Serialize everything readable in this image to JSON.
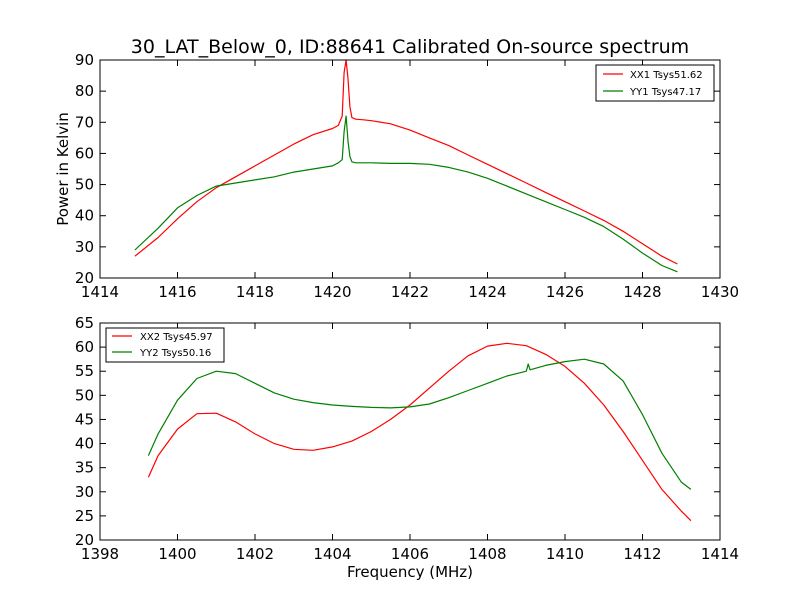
{
  "chart_data": [
    {
      "type": "line",
      "title": "30_LAT_Below_0, ID:88641 Calibrated On-source spectrum",
      "xlabel": "",
      "ylabel": "Power in Kelvin",
      "xlim": [
        1414,
        1430
      ],
      "ylim": [
        20,
        90
      ],
      "xticks": [
        1414,
        1416,
        1418,
        1420,
        1422,
        1424,
        1426,
        1428,
        1430
      ],
      "yticks": [
        20,
        30,
        40,
        50,
        60,
        70,
        80,
        90
      ],
      "grid": false,
      "legend_position": "top-right",
      "series": [
        {
          "name": "XX1 Tsys51.62",
          "color": "#ff0000",
          "x": [
            1414.9,
            1415.5,
            1416,
            1416.5,
            1417,
            1417.5,
            1418,
            1418.5,
            1419,
            1419.5,
            1420,
            1420.15,
            1420.25,
            1420.3,
            1420.35,
            1420.4,
            1420.45,
            1420.5,
            1420.6,
            1420.8,
            1421,
            1421.5,
            1422,
            1422.5,
            1423,
            1423.5,
            1424,
            1424.5,
            1425,
            1425.5,
            1426,
            1426.5,
            1427,
            1427.5,
            1428,
            1428.5,
            1428.9
          ],
          "y": [
            27,
            33,
            39,
            44.5,
            49,
            52.5,
            56,
            59.5,
            63,
            66,
            68,
            69,
            72,
            86,
            90,
            84,
            75,
            71.5,
            71,
            70.8,
            70.5,
            69.5,
            67.5,
            65,
            62.5,
            59.5,
            56.5,
            53.5,
            50.5,
            47.5,
            44.5,
            41.5,
            38.5,
            35,
            31,
            27,
            24.5
          ]
        },
        {
          "name": "YY1 Tsys47.17",
          "color": "#008000",
          "x": [
            1414.9,
            1415.5,
            1416,
            1416.5,
            1417,
            1417.5,
            1418,
            1418.5,
            1419,
            1419.5,
            1420,
            1420.15,
            1420.25,
            1420.3,
            1420.35,
            1420.4,
            1420.45,
            1420.5,
            1420.6,
            1421,
            1421.5,
            1422,
            1422.5,
            1423,
            1423.5,
            1424,
            1424.5,
            1425,
            1425.5,
            1426,
            1426.5,
            1427,
            1427.5,
            1428,
            1428.5,
            1428.9
          ],
          "y": [
            29,
            36,
            42.5,
            46.5,
            49.5,
            50.5,
            51.5,
            52.5,
            54,
            55,
            56,
            57,
            58,
            67,
            72,
            64,
            59,
            57.3,
            57,
            57,
            56.8,
            56.8,
            56.5,
            55.5,
            54,
            52,
            49.5,
            47,
            44.5,
            42,
            39.5,
            36.5,
            32.5,
            28,
            24,
            22
          ]
        }
      ]
    },
    {
      "type": "line",
      "title": "",
      "xlabel": "Frequency (MHz)",
      "ylabel": "",
      "xlim": [
        1398,
        1414
      ],
      "ylim": [
        20,
        65
      ],
      "xticks": [
        1398,
        1400,
        1402,
        1404,
        1406,
        1408,
        1410,
        1412,
        1414
      ],
      "yticks": [
        20,
        25,
        30,
        35,
        40,
        45,
        50,
        55,
        60,
        65
      ],
      "grid": false,
      "legend_position": "top-left",
      "series": [
        {
          "name": "XX2 Tsys45.97",
          "color": "#ff0000",
          "x": [
            1399.25,
            1399.5,
            1400,
            1400.5,
            1401,
            1401.5,
            1402,
            1402.5,
            1403,
            1403.5,
            1404,
            1404.5,
            1405,
            1405.5,
            1406,
            1406.5,
            1407,
            1407.5,
            1408,
            1408.5,
            1409,
            1409.5,
            1410,
            1410.5,
            1411,
            1411.5,
            1412,
            1412.5,
            1413,
            1413.25
          ],
          "y": [
            33,
            37.5,
            43,
            46.2,
            46.3,
            44.5,
            42,
            40,
            38.8,
            38.6,
            39.3,
            40.5,
            42.5,
            45,
            48,
            51.5,
            55,
            58.2,
            60.2,
            60.8,
            60.3,
            58.5,
            56,
            52.5,
            48,
            42.5,
            36.5,
            30.5,
            26,
            24
          ]
        },
        {
          "name": "YY2 Tsys50.16",
          "color": "#008000",
          "x": [
            1399.25,
            1399.5,
            1400,
            1400.5,
            1401,
            1401.5,
            1402,
            1402.5,
            1403,
            1403.5,
            1404,
            1404.5,
            1405,
            1405.5,
            1406,
            1406.5,
            1407,
            1407.5,
            1408,
            1408.5,
            1409,
            1409.05,
            1409.1,
            1409.5,
            1410,
            1410.5,
            1411,
            1411.5,
            1412,
            1412.5,
            1413,
            1413.25
          ],
          "y": [
            37.5,
            42,
            49,
            53.5,
            55,
            54.5,
            52.5,
            50.5,
            49.2,
            48.5,
            48,
            47.7,
            47.5,
            47.4,
            47.6,
            48.2,
            49.5,
            51,
            52.5,
            54,
            55,
            56.5,
            55.3,
            56.2,
            57,
            57.5,
            56.5,
            53,
            46,
            38,
            32,
            30.5
          ]
        }
      ]
    }
  ]
}
